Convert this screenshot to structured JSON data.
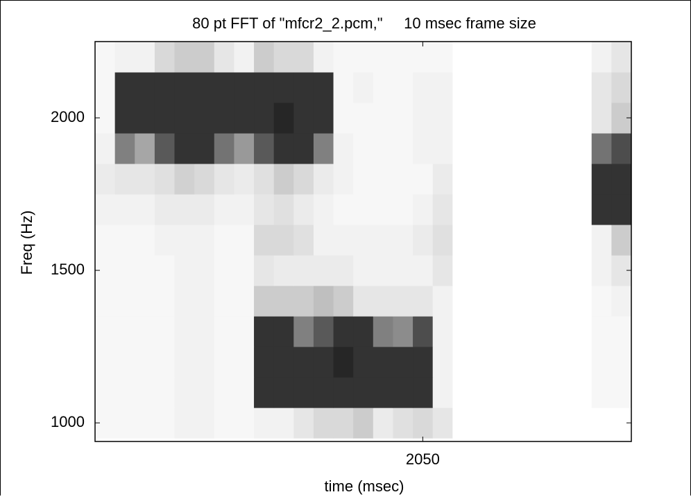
{
  "chart_data": {
    "type": "heatmap",
    "title": "80 pt FFT of \"mfcr2_2.pcm,\"     10 msec frame size",
    "xlabel": "time (msec)",
    "ylabel": "Freq (Hz)",
    "x": [
      1890,
      1900,
      1910,
      1920,
      1930,
      1940,
      1950,
      1960,
      1970,
      1980,
      1990,
      2000,
      2010,
      2020,
      2030,
      2040,
      2050,
      2060,
      2070,
      2080,
      2090,
      2100,
      2110,
      2120,
      2130,
      2140,
      2150
    ],
    "y": [
      1000,
      1100,
      1200,
      1300,
      1400,
      1500,
      1600,
      1700,
      1800,
      1900,
      2000,
      2100,
      2200
    ],
    "z": [
      [
        0.03,
        0.03,
        0.03,
        0.03,
        0.05,
        0.05,
        0.03,
        0.03,
        0.05,
        0.05,
        0.1,
        0.15,
        0.15,
        0.2,
        0.08,
        0.12,
        0.15,
        0.1,
        0,
        0,
        0,
        0,
        0,
        0,
        0,
        0,
        0
      ],
      [
        0.03,
        0.03,
        0.03,
        0.03,
        0.05,
        0.05,
        0.03,
        0.03,
        0.8,
        0.8,
        0.8,
        0.8,
        0.8,
        0.8,
        0.8,
        0.8,
        0.8,
        0.05,
        0,
        0,
        0,
        0,
        0,
        0,
        0,
        0.03,
        0.03
      ],
      [
        0.03,
        0.03,
        0.03,
        0.03,
        0.05,
        0.05,
        0.03,
        0.03,
        0.8,
        0.8,
        0.8,
        0.8,
        0.85,
        0.8,
        0.8,
        0.8,
        0.8,
        0.05,
        0,
        0,
        0,
        0,
        0,
        0,
        0,
        0.03,
        0.03
      ],
      [
        0.03,
        0.03,
        0.03,
        0.03,
        0.05,
        0.05,
        0.03,
        0.03,
        0.8,
        0.8,
        0.5,
        0.65,
        0.8,
        0.8,
        0.5,
        0.45,
        0.7,
        0.05,
        0,
        0,
        0,
        0,
        0,
        0,
        0,
        0.03,
        0.03
      ],
      [
        0.03,
        0.03,
        0.03,
        0.03,
        0.05,
        0.05,
        0.03,
        0.03,
        0.2,
        0.2,
        0.2,
        0.25,
        0.2,
        0.1,
        0.1,
        0.1,
        0.1,
        0.05,
        0,
        0,
        0,
        0,
        0,
        0,
        0,
        0.03,
        0.05
      ],
      [
        0.03,
        0.03,
        0.03,
        0.03,
        0.05,
        0.05,
        0.03,
        0.03,
        0.1,
        0.08,
        0.08,
        0.08,
        0.08,
        0.05,
        0.05,
        0.05,
        0.05,
        0.1,
        0,
        0,
        0,
        0,
        0,
        0,
        0,
        0.05,
        0.1
      ],
      [
        0.03,
        0.03,
        0.03,
        0.05,
        0.05,
        0.05,
        0.03,
        0.03,
        0.15,
        0.15,
        0.12,
        0.05,
        0.05,
        0.05,
        0.05,
        0.05,
        0.08,
        0.12,
        0,
        0,
        0,
        0,
        0,
        0,
        0,
        0.05,
        0.2
      ],
      [
        0.05,
        0.05,
        0.05,
        0.08,
        0.08,
        0.08,
        0.05,
        0.05,
        0.1,
        0.12,
        0.08,
        0.05,
        0.03,
        0.03,
        0.03,
        0.03,
        0.05,
        0.1,
        0,
        0,
        0,
        0,
        0,
        0,
        0,
        0.8,
        0.8
      ],
      [
        0.08,
        0.1,
        0.1,
        0.12,
        0.18,
        0.15,
        0.1,
        0.08,
        0.12,
        0.2,
        0.15,
        0.08,
        0.05,
        0.03,
        0.03,
        0.03,
        0.03,
        0.08,
        0,
        0,
        0,
        0,
        0,
        0,
        0,
        0.8,
        0.8
      ],
      [
        0.05,
        0.5,
        0.35,
        0.65,
        0.8,
        0.8,
        0.55,
        0.4,
        0.65,
        0.8,
        0.8,
        0.5,
        0.05,
        0.03,
        0.03,
        0.03,
        0.05,
        0.05,
        0,
        0,
        0,
        0,
        0,
        0,
        0,
        0.55,
        0.7
      ],
      [
        0.03,
        0.8,
        0.8,
        0.8,
        0.8,
        0.8,
        0.8,
        0.8,
        0.8,
        0.85,
        0.8,
        0.8,
        0.03,
        0.03,
        0.03,
        0.03,
        0.05,
        0.05,
        0,
        0,
        0,
        0,
        0,
        0,
        0,
        0.1,
        0.2
      ],
      [
        0.03,
        0.8,
        0.8,
        0.8,
        0.8,
        0.8,
        0.8,
        0.8,
        0.8,
        0.8,
        0.8,
        0.8,
        0.03,
        0.05,
        0.03,
        0.03,
        0.05,
        0.05,
        0,
        0,
        0,
        0,
        0,
        0,
        0,
        0.1,
        0.15
      ],
      [
        0.03,
        0.05,
        0.05,
        0.15,
        0.2,
        0.2,
        0.1,
        0.05,
        0.2,
        0.15,
        0.15,
        0.05,
        0.03,
        0.03,
        0.03,
        0.03,
        0.03,
        0.03,
        0,
        0,
        0,
        0,
        0,
        0,
        0,
        0.05,
        0.1
      ]
    ],
    "xlim": [
      1885,
      2155
    ],
    "ylim": [
      939,
      2250
    ],
    "xticks": [
      2050
    ],
    "yticks": [
      1000,
      1500,
      2000
    ]
  }
}
